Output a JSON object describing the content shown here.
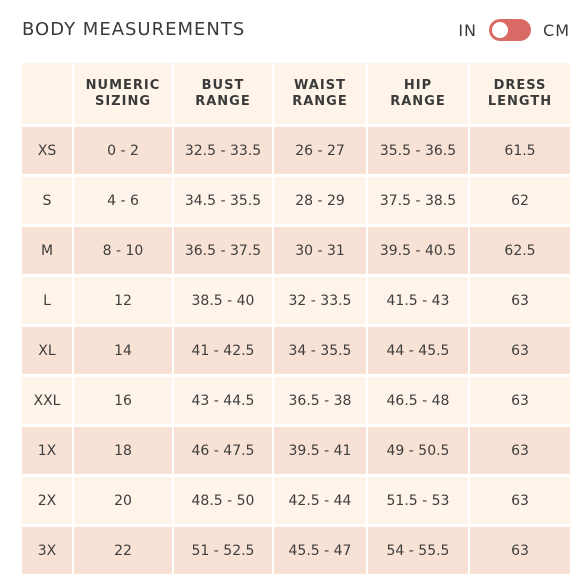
{
  "title": "BODY MEASUREMENTS",
  "unit_toggle": {
    "left_label": "IN",
    "right_label": "CM",
    "state": "on",
    "accent_color": "#d96a66"
  },
  "table": {
    "columns": [
      "",
      "NUMERIC\nSIZING",
      "BUST\nRANGE",
      "WAIST\nRANGE",
      "HIP\nRANGE",
      "DRESS\nLENGTH"
    ],
    "rows": [
      [
        "XS",
        "0 - 2",
        "32.5 - 33.5",
        "26 - 27",
        "35.5 - 36.5",
        "61.5"
      ],
      [
        "S",
        "4 - 6",
        "34.5 - 35.5",
        "28 - 29",
        "37.5 - 38.5",
        "62"
      ],
      [
        "M",
        "8 - 10",
        "36.5 - 37.5",
        "30 - 31",
        "39.5 - 40.5",
        "62.5"
      ],
      [
        "L",
        "12",
        "38.5 - 40",
        "32 - 33.5",
        "41.5 - 43",
        "63"
      ],
      [
        "XL",
        "14",
        "41 - 42.5",
        "34 - 35.5",
        "44 - 45.5",
        "63"
      ],
      [
        "XXL",
        "16",
        "43 - 44.5",
        "36.5 - 38",
        "46.5 - 48",
        "63"
      ],
      [
        "1X",
        "18",
        "46 - 47.5",
        "39.5 - 41",
        "49 - 50.5",
        "63"
      ],
      [
        "2X",
        "20",
        "48.5 - 50",
        "42.5 - 44",
        "51.5 - 53",
        "63"
      ],
      [
        "3X",
        "22",
        "51 - 52.5",
        "45.5 - 47",
        "54 - 55.5",
        "63"
      ]
    ]
  },
  "colors": {
    "row_dark": "#f8e2d5",
    "row_light": "#fff4ea"
  }
}
